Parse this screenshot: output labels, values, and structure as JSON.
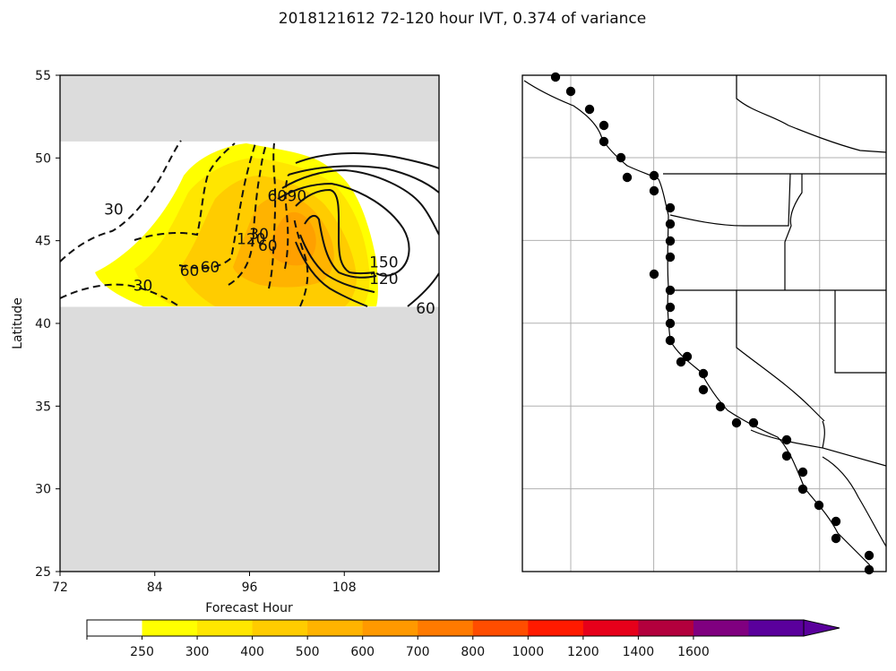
{
  "chart_data": {
    "type": "contour",
    "title": "2018121612 72-120 hour IVT, 0.374 of variance",
    "xlabel": "Forecast Hour",
    "ylabel": "Latitude",
    "xlim": [
      72,
      120
    ],
    "ylim": [
      25,
      55
    ],
    "xticks": [
      "72",
      "84",
      "96",
      "108"
    ],
    "yticks": [
      "25",
      "30",
      "35",
      "40",
      "45",
      "50",
      "55"
    ],
    "masked_color": "#dcdcdc",
    "data_lat_range": [
      41,
      51
    ],
    "filled_levels": [
      "250",
      "300",
      "400",
      "500",
      "600",
      "700",
      "800",
      "1000",
      "1200",
      "1400",
      "1600"
    ],
    "colorbar_colors": [
      "#ffffff",
      "#ffff00",
      "#ffe600",
      "#ffcc00",
      "#ffb300",
      "#ff9900",
      "#ff7a00",
      "#ff4d00",
      "#ff1a00",
      "#e6001a",
      "#b3003d",
      "#800080",
      "#5a009c"
    ],
    "contour_labels": [
      {
        "text": "30",
        "x": 78.8,
        "y": 46.8
      },
      {
        "text": "30",
        "x": 82.5,
        "y": 42.2
      },
      {
        "text": "60",
        "x": 88.4,
        "y": 43.1
      },
      {
        "text": "60",
        "x": 91.0,
        "y": 43.3
      },
      {
        "text": "120",
        "x": 96.2,
        "y": 45.0
      },
      {
        "text": "30",
        "x": 97.2,
        "y": 45.3
      },
      {
        "text": "60",
        "x": 98.3,
        "y": 44.6
      },
      {
        "text": "60",
        "x": 99.5,
        "y": 47.6
      },
      {
        "text": "90",
        "x": 102.0,
        "y": 47.6
      },
      {
        "text": "150",
        "x": 113.0,
        "y": 43.6
      },
      {
        "text": "120",
        "x": 113.0,
        "y": 42.6
      },
      {
        "text": "60",
        "x": 118.3,
        "y": 40.8
      }
    ],
    "map_grid_lines": {
      "vertical": 4,
      "horizontal": 5
    },
    "station_markers": 34
  }
}
